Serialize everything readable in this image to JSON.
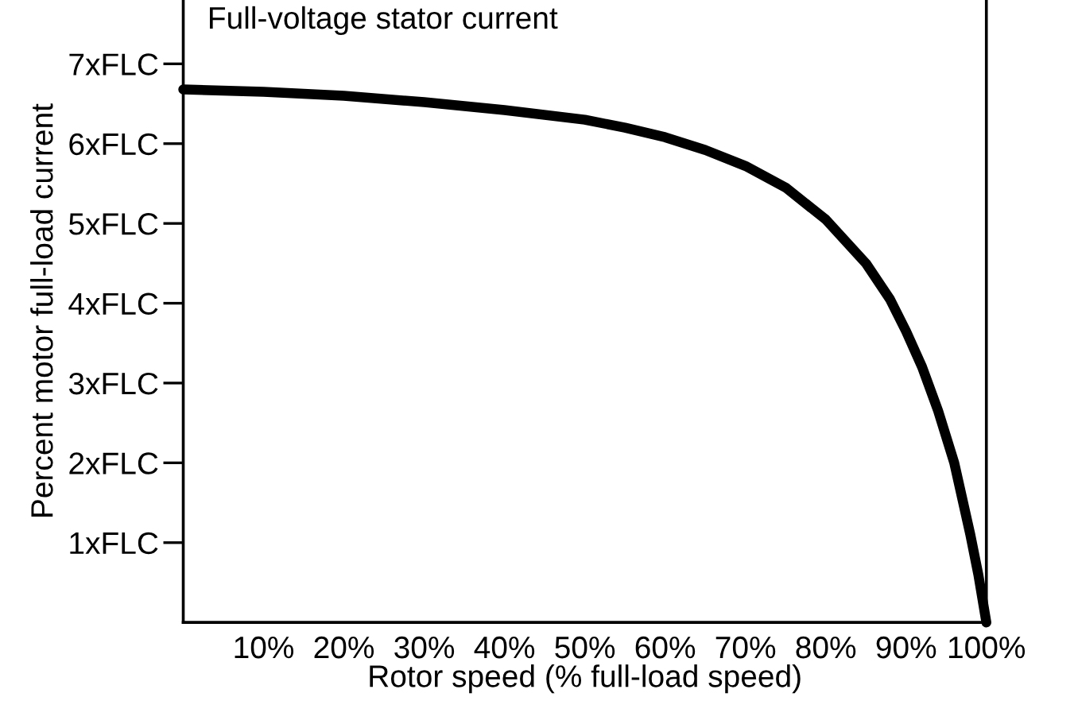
{
  "chart_data": {
    "type": "line",
    "xlabel": "Rotor speed (% full-load speed)",
    "ylabel": "Percent motor full-load current",
    "annotations": [
      "Full-voltage stator current"
    ],
    "x": [
      0,
      10,
      20,
      30,
      40,
      50,
      55,
      60,
      65,
      70,
      75,
      80,
      85,
      88,
      90,
      92,
      94,
      96,
      98,
      99,
      100
    ],
    "series": [
      {
        "color": "#000000",
        "values": [
          6.68,
          6.65,
          6.6,
          6.52,
          6.42,
          6.3,
          6.2,
          6.08,
          5.92,
          5.72,
          5.45,
          5.05,
          4.5,
          4.05,
          3.65,
          3.2,
          2.65,
          2.0,
          1.1,
          0.6,
          0
        ]
      }
    ],
    "xlim": [
      0,
      100
    ],
    "ylim": [
      0,
      7.8
    ],
    "xticks": [
      {
        "value": 10,
        "label": "10%"
      },
      {
        "value": 20,
        "label": "20%"
      },
      {
        "value": 30,
        "label": "30%"
      },
      {
        "value": 40,
        "label": "40%"
      },
      {
        "value": 50,
        "label": "50%"
      },
      {
        "value": 60,
        "label": "60%"
      },
      {
        "value": 70,
        "label": "70%"
      },
      {
        "value": 80,
        "label": "80%"
      },
      {
        "value": 90,
        "label": "90%"
      },
      {
        "value": 100,
        "label": "100%"
      }
    ],
    "yticks": [
      {
        "value": 1,
        "label": "1xFLC"
      },
      {
        "value": 2,
        "label": "2xFLC"
      },
      {
        "value": 3,
        "label": "3xFLC"
      },
      {
        "value": 4,
        "label": "4xFLC"
      },
      {
        "value": 5,
        "label": "5xFLC"
      },
      {
        "value": 6,
        "label": "6xFLC"
      },
      {
        "value": 7,
        "label": "7xFLC"
      }
    ],
    "grid": false,
    "legend": false,
    "marker": "none",
    "line_style": "solid"
  }
}
